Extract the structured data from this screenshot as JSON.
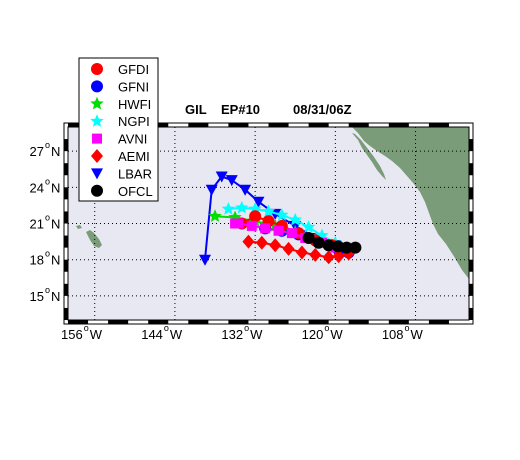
{
  "chart_data": {
    "type": "map",
    "title": {
      "storm": "GIL",
      "id": "EP#10",
      "datetime": "08/31/06Z"
    },
    "xaxis": {
      "range": [
        -160,
        -100
      ],
      "ticks": [
        {
          "value": -156,
          "num": "156",
          "hemi": "W"
        },
        {
          "value": -144,
          "num": "144",
          "hemi": "W"
        },
        {
          "value": -132,
          "num": "132",
          "hemi": "W"
        },
        {
          "value": -120,
          "num": "120",
          "hemi": "W"
        },
        {
          "value": -108,
          "num": "108",
          "hemi": "W"
        }
      ]
    },
    "yaxis": {
      "range": [
        13,
        29
      ],
      "ticks": [
        {
          "value": 15,
          "num": "15",
          "hemi": "N"
        },
        {
          "value": 18,
          "num": "18",
          "hemi": "N"
        },
        {
          "value": 21,
          "num": "21",
          "hemi": "N"
        },
        {
          "value": 24,
          "num": "24",
          "hemi": "N"
        },
        {
          "value": 27,
          "num": "27",
          "hemi": "N"
        }
      ]
    },
    "grid": true,
    "ocean_color": "#e8e8f2",
    "land_color": "#7a9c78",
    "legend": {
      "position": "top-left",
      "entries": [
        "GFDI",
        "GFNI",
        "HWFI",
        "NGPI",
        "AVNI",
        "AEMI",
        "LBAR",
        "OFCL"
      ]
    },
    "series": [
      {
        "name": "LBAR",
        "color": "#0000ff",
        "marker": "triangle-down",
        "lon": [
          -118.0,
          -120.0,
          -123.0,
          -126.0,
          -129.0,
          -131.5,
          -133.5,
          -135.5,
          -137.0,
          -138.5
        ],
        "lat": [
          18.8,
          19.2,
          19.8,
          20.8,
          21.8,
          22.8,
          23.8,
          24.6,
          24.9,
          23.8
        ],
        "tail": [
          -139.5,
          18.0
        ]
      },
      {
        "name": "GFNI",
        "color": "#0000ff",
        "marker": "circle",
        "lon": [
          -118.0,
          -119.5,
          -121.0,
          -123.0,
          -125.5,
          -128.0,
          -130.5
        ],
        "lat": [
          18.6,
          18.8,
          19.2,
          19.7,
          20.1,
          20.4,
          20.6
        ]
      },
      {
        "name": "HWFI",
        "color": "#00dd00",
        "marker": "star",
        "lon": [
          -118.0,
          -120.5,
          -123.0,
          -126.0,
          -129.0,
          -132.0,
          -135.0,
          -138.0
        ],
        "lat": [
          18.8,
          19.2,
          19.7,
          20.3,
          20.8,
          21.2,
          21.5,
          21.6
        ]
      },
      {
        "name": "NGPI",
        "color": "#00ffff",
        "marker": "star",
        "lon": [
          -118.0,
          -120.0,
          -122.0,
          -124.0,
          -126.0,
          -128.0,
          -130.0,
          -132.0,
          -134.0,
          -136.0
        ],
        "lat": [
          18.8,
          19.4,
          20.0,
          20.7,
          21.3,
          21.7,
          22.0,
          22.2,
          22.3,
          22.2
        ]
      },
      {
        "name": "GFDI",
        "color": "#ff0000",
        "marker": "circle",
        "lon": [
          -118.0,
          -120.5,
          -123.0,
          -125.5,
          -128.0,
          -130.0,
          -132.0,
          -134.0
        ],
        "lat": [
          18.8,
          19.2,
          19.6,
          20.2,
          20.8,
          21.2,
          21.6,
          21.0
        ]
      },
      {
        "name": "AVNI",
        "color": "#ff00ff",
        "marker": "square",
        "lon": [
          -118.0,
          -120.0,
          -122.0,
          -124.5,
          -126.5,
          -128.5,
          -130.5,
          -132.5,
          -134.5,
          -135.0
        ],
        "lat": [
          18.8,
          19.0,
          19.4,
          19.8,
          20.2,
          20.4,
          20.6,
          20.8,
          21.0,
          21.0
        ]
      },
      {
        "name": "AEMI",
        "color": "#ff0000",
        "marker": "diamond",
        "lon": [
          -118.0,
          -119.5,
          -121.0,
          -123.0,
          -125.0,
          -127.0,
          -129.0,
          -131.0,
          -133.0
        ],
        "lat": [
          18.5,
          18.3,
          18.2,
          18.4,
          18.6,
          18.9,
          19.2,
          19.4,
          19.5
        ]
      },
      {
        "name": "OFCL",
        "color": "#000000",
        "marker": "circle",
        "lon": [
          -117.0,
          -118.3,
          -119.6,
          -121.0,
          -122.5,
          -124.0
        ],
        "lat": [
          19.0,
          19.0,
          19.1,
          19.2,
          19.4,
          19.8
        ]
      }
    ]
  }
}
